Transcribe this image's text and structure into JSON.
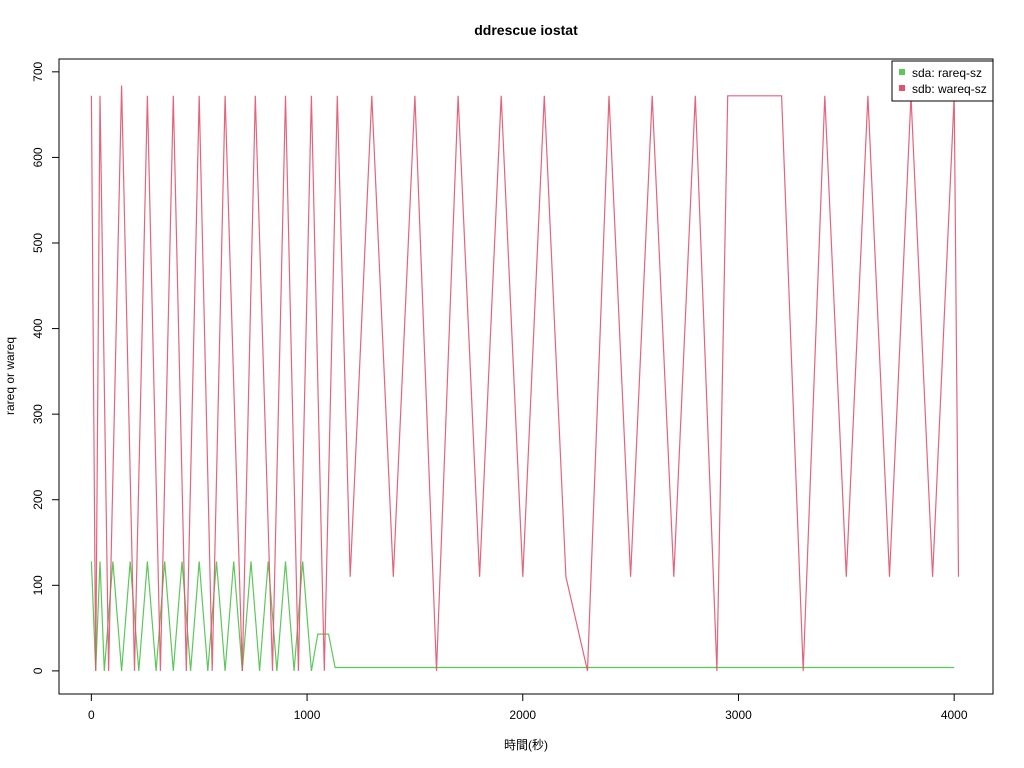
{
  "chart_data": {
    "type": "line",
    "title": "ddrescue iostat",
    "xlabel": "時間(秒)",
    "ylabel": "rareq or wareq",
    "xlim": [
      -150,
      4180
    ],
    "ylim": [
      -27,
      715
    ],
    "x_ticks": [
      0,
      1000,
      2000,
      3000,
      4000
    ],
    "x_tick_labels": [
      "0",
      "1000",
      "2000",
      "3000",
      "4000"
    ],
    "y_ticks": [
      0,
      100,
      200,
      300,
      400,
      500,
      600,
      700
    ],
    "y_tick_labels": [
      "0",
      "100",
      "200",
      "300",
      "400",
      "500",
      "600",
      "700"
    ],
    "grid": false,
    "legend_position": "top-right",
    "series": [
      {
        "name": "sda: rareq-sz",
        "color": "#5cc85c",
        "description_points": [
          [
            0,
            128
          ],
          [
            20,
            0
          ],
          [
            40,
            128
          ],
          [
            60,
            0
          ],
          [
            100,
            128
          ],
          [
            140,
            0
          ],
          [
            180,
            128
          ],
          [
            220,
            0
          ],
          [
            260,
            128
          ],
          [
            300,
            0
          ],
          [
            340,
            128
          ],
          [
            380,
            0
          ],
          [
            420,
            128
          ],
          [
            460,
            0
          ],
          [
            500,
            128
          ],
          [
            540,
            0
          ],
          [
            580,
            128
          ],
          [
            620,
            0
          ],
          [
            660,
            128
          ],
          [
            700,
            0
          ],
          [
            740,
            128
          ],
          [
            780,
            0
          ],
          [
            820,
            128
          ],
          [
            860,
            0
          ],
          [
            900,
            128
          ],
          [
            940,
            0
          ],
          [
            980,
            128
          ],
          [
            1020,
            0
          ],
          [
            1050,
            43
          ],
          [
            1100,
            43
          ],
          [
            1130,
            4
          ],
          [
            1600,
            4
          ],
          [
            2300,
            4
          ],
          [
            2950,
            4
          ],
          [
            3300,
            4
          ],
          [
            4000,
            4
          ]
        ]
      },
      {
        "name": "sdb: wareq-sz",
        "color": "#e0536e",
        "description_points": [
          [
            0,
            672
          ],
          [
            20,
            0
          ],
          [
            40,
            672
          ],
          [
            80,
            0
          ],
          [
            140,
            684
          ],
          [
            200,
            0
          ],
          [
            260,
            672
          ],
          [
            320,
            0
          ],
          [
            380,
            672
          ],
          [
            440,
            0
          ],
          [
            500,
            672
          ],
          [
            560,
            0
          ],
          [
            620,
            672
          ],
          [
            700,
            0
          ],
          [
            760,
            672
          ],
          [
            840,
            0
          ],
          [
            900,
            672
          ],
          [
            960,
            0
          ],
          [
            1020,
            672
          ],
          [
            1080,
            0
          ],
          [
            1140,
            672
          ],
          [
            1200,
            110
          ],
          [
            1300,
            672
          ],
          [
            1400,
            110
          ],
          [
            1500,
            672
          ],
          [
            1600,
            0
          ],
          [
            1700,
            672
          ],
          [
            1800,
            110
          ],
          [
            1900,
            672
          ],
          [
            2000,
            110
          ],
          [
            2100,
            672
          ],
          [
            2200,
            110
          ],
          [
            2300,
            0
          ],
          [
            2400,
            672
          ],
          [
            2500,
            110
          ],
          [
            2600,
            672
          ],
          [
            2700,
            110
          ],
          [
            2800,
            672
          ],
          [
            2900,
            0
          ],
          [
            2950,
            672
          ],
          [
            3100,
            672
          ],
          [
            3200,
            672
          ],
          [
            3300,
            0
          ],
          [
            3400,
            672
          ],
          [
            3500,
            110
          ],
          [
            3600,
            672
          ],
          [
            3700,
            110
          ],
          [
            3800,
            672
          ],
          [
            3900,
            110
          ],
          [
            4000,
            672
          ],
          [
            4020,
            110
          ]
        ]
      }
    ]
  }
}
